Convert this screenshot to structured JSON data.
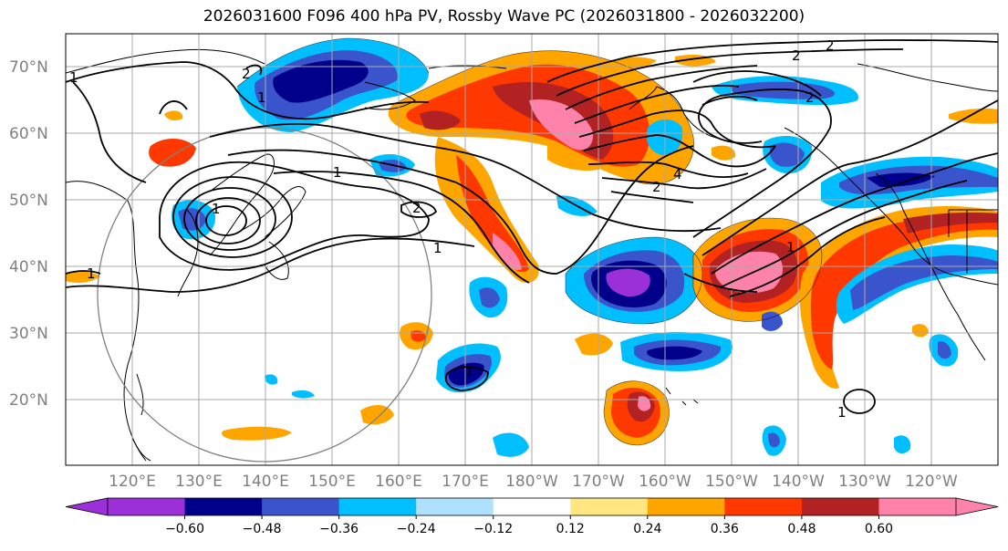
{
  "title": "2026031600 F096 400 hPa PV, Rossby Wave PC (2026031800 - 2026032200)",
  "lat_ticks": [
    "70°N",
    "60°N",
    "50°N",
    "40°N",
    "30°N",
    "20°N"
  ],
  "lon_ticks": [
    "120°E",
    "130°E",
    "140°E",
    "150°E",
    "160°E",
    "170°E",
    "180°W",
    "170°W",
    "160°W",
    "150°W",
    "140°W",
    "130°W",
    "120°W"
  ],
  "colorbar": {
    "ticks": [
      "−0.60",
      "−0.48",
      "−0.36",
      "−0.24",
      "−0.12",
      "0.12",
      "0.24",
      "0.36",
      "0.48",
      "0.60"
    ],
    "colors": [
      "#9b30d8",
      "#00008b",
      "#3a55cc",
      "#00bfff",
      "#b0e0ff",
      "#ffffff",
      "#ffe680",
      "#ffa500",
      "#ff3800",
      "#b22222",
      "#ff82ab"
    ],
    "extend_under": "#9b30d8",
    "extend_over": "#ff82ab"
  },
  "contour_labels": [
    "2",
    "2",
    "2",
    "2",
    "1",
    "1",
    "1",
    "1",
    "1",
    "1",
    "2",
    "4",
    "2",
    "1",
    "1",
    "1"
  ]
}
